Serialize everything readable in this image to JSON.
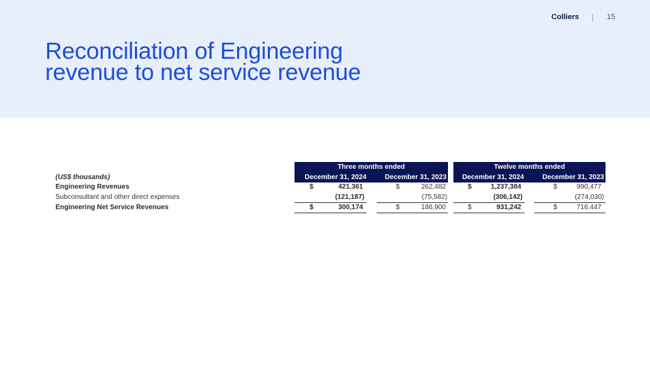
{
  "header": {
    "brand": "Colliers",
    "separator": "|",
    "page_number": "15"
  },
  "title": {
    "line1": "Reconciliation of Engineering",
    "line2": "revenue to net service revenue"
  },
  "table": {
    "units_label": "(US$ thousands)",
    "group_headers": [
      "Three months ended",
      "Twelve months ended"
    ],
    "column_headers": [
      "December 31, 2024",
      "December 31, 2023",
      "December 31, 2024",
      "December 31, 2023"
    ],
    "rows": [
      {
        "label": "Engineering Revenues",
        "cells": [
          {
            "currency": "$",
            "value": "421,361"
          },
          {
            "currency": "$",
            "value": "262,482"
          },
          {
            "currency": "$",
            "value": "1,237,384"
          },
          {
            "currency": "$",
            "value": "990,477"
          }
        ]
      },
      {
        "label": "Subconsultant and other direct expenses",
        "cells": [
          {
            "currency": "",
            "value": "(121,187)"
          },
          {
            "currency": "",
            "value": "(75,582)"
          },
          {
            "currency": "",
            "value": "(306,142)"
          },
          {
            "currency": "",
            "value": "(274,030)"
          }
        ]
      },
      {
        "label": "Engineering Net Service Revenues",
        "cells": [
          {
            "currency": "$",
            "value": "300,174"
          },
          {
            "currency": "$",
            "value": "186,900"
          },
          {
            "currency": "$",
            "value": "931,242"
          },
          {
            "currency": "$",
            "value": "716,447"
          }
        ]
      }
    ]
  },
  "colors": {
    "header_band": "#e8effb",
    "title": "#1d4ed8",
    "table_header": "#0c1456"
  }
}
